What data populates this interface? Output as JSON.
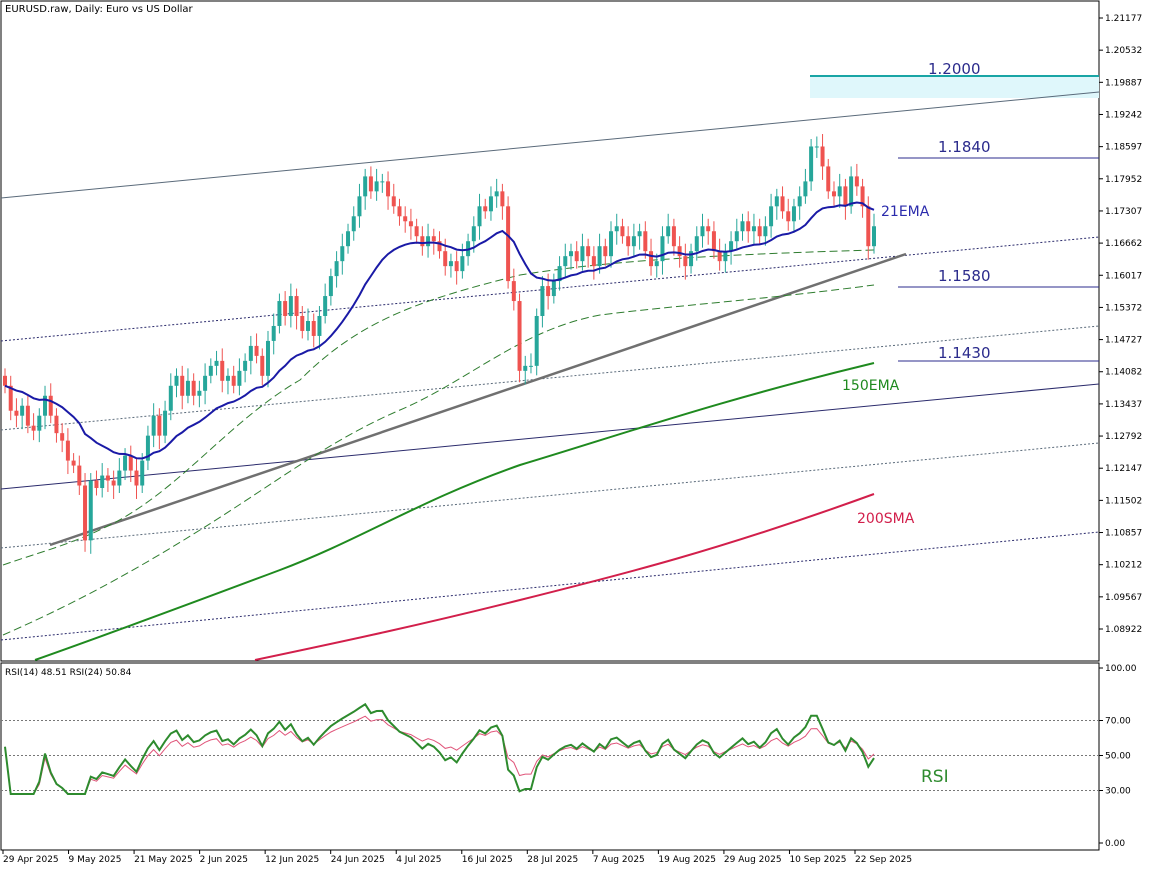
{
  "title": "EURUSD.raw, Daily:  Euro vs US Dollar",
  "rsi_title": "RSI(14) 48.51 RSI(24) 50.84",
  "colors": {
    "bull": "#26a69a",
    "bear": "#ef5350",
    "ema21": "#1a1aa6",
    "ema150": "#1f8a1f",
    "sma200": "#d21f4b",
    "level_line": "#2b2b8c",
    "zone": "#dff7fb",
    "zone_line": "#19a5a5",
    "rsi14": "#2e8b2e",
    "rsi24": "#e0557a"
  },
  "chart_data": [
    {
      "type": "candlestick",
      "ylim": [
        1.0857,
        1.2142
      ],
      "yticks": [
        "1.21177",
        "1.20532",
        "1.19887",
        "1.19242",
        "1.18597",
        "1.17952",
        "1.17307",
        "1.16662",
        "1.16017",
        "1.15372",
        "1.14727",
        "1.14082",
        "1.13437",
        "1.12792",
        "1.12147",
        "1.11502",
        "1.10857",
        "1.10212",
        "1.09567",
        "1.08922"
      ],
      "x_labels": [
        "29 Apr 2025",
        "9 May 2025",
        "21 May 2025",
        "2 Jun 2025",
        "12 Jun 2025",
        "24 Jun 2025",
        "4 Jul 2025",
        "16 Jul 2025",
        "28 Jul 2025",
        "7 Aug 2025",
        "19 Aug 2025",
        "29 Aug 2025",
        "10 Sep 2025",
        "22 Sep 2025"
      ],
      "closes": [
        1.138,
        1.133,
        1.132,
        1.134,
        1.13,
        1.129,
        1.132,
        1.136,
        1.132,
        1.1285,
        1.127,
        1.123,
        1.122,
        1.118,
        1.107,
        1.119,
        1.1175,
        1.12,
        1.119,
        1.118,
        1.121,
        1.124,
        1.121,
        1.118,
        1.123,
        1.128,
        1.132,
        1.128,
        1.133,
        1.138,
        1.14,
        1.136,
        1.139,
        1.136,
        1.137,
        1.14,
        1.142,
        1.143,
        1.139,
        1.14,
        1.138,
        1.141,
        1.143,
        1.146,
        1.144,
        1.14,
        1.147,
        1.15,
        1.155,
        1.152,
        1.156,
        1.152,
        1.149,
        1.151,
        1.148,
        1.152,
        1.156,
        1.16,
        1.163,
        1.166,
        1.169,
        1.172,
        1.176,
        1.18,
        1.177,
        1.179,
        1.179,
        1.176,
        1.174,
        1.172,
        1.171,
        1.17,
        1.168,
        1.166,
        1.168,
        1.167,
        1.165,
        1.162,
        1.163,
        1.161,
        1.164,
        1.167,
        1.17,
        1.174,
        1.173,
        1.176,
        1.177,
        1.174,
        1.159,
        1.155,
        1.141,
        1.142,
        1.142,
        1.152,
        1.158,
        1.156,
        1.159,
        1.162,
        1.164,
        1.165,
        1.163,
        1.166,
        1.164,
        1.162,
        1.166,
        1.164,
        1.169,
        1.17,
        1.168,
        1.166,
        1.168,
        1.169,
        1.165,
        1.162,
        1.163,
        1.168,
        1.17,
        1.166,
        1.164,
        1.162,
        1.165,
        1.168,
        1.17,
        1.169,
        1.165,
        1.163,
        1.165,
        1.167,
        1.169,
        1.171,
        1.169,
        1.17,
        1.168,
        1.17,
        1.174,
        1.176,
        1.173,
        1.171,
        1.174,
        1.176,
        1.179,
        1.186,
        1.186,
        1.182,
        1.177,
        1.176,
        1.178,
        1.174,
        1.18,
        1.178,
        1.174,
        1.166,
        1.17
      ],
      "ema21_end": 1.1733,
      "ema150_end": 1.142,
      "sma200_end": 1.1157
    },
    {
      "type": "line",
      "ylim": [
        0,
        100
      ],
      "yticks": [
        "100.00",
        "70.00",
        "50.00",
        "30.00",
        "0.00"
      ],
      "series": [
        {
          "name": "RSI(14)",
          "last": 48.51
        },
        {
          "name": "RSI(24)",
          "last": 50.84
        }
      ]
    }
  ],
  "annotations": {
    "level_1200": "1.2000",
    "level_1184": "1.1840",
    "level_1158": "1.1580",
    "level_1143": "1.1430",
    "ema21": "21EMA",
    "ema150": "150EMA",
    "sma200": "200SMA",
    "rsi": "RSI"
  }
}
